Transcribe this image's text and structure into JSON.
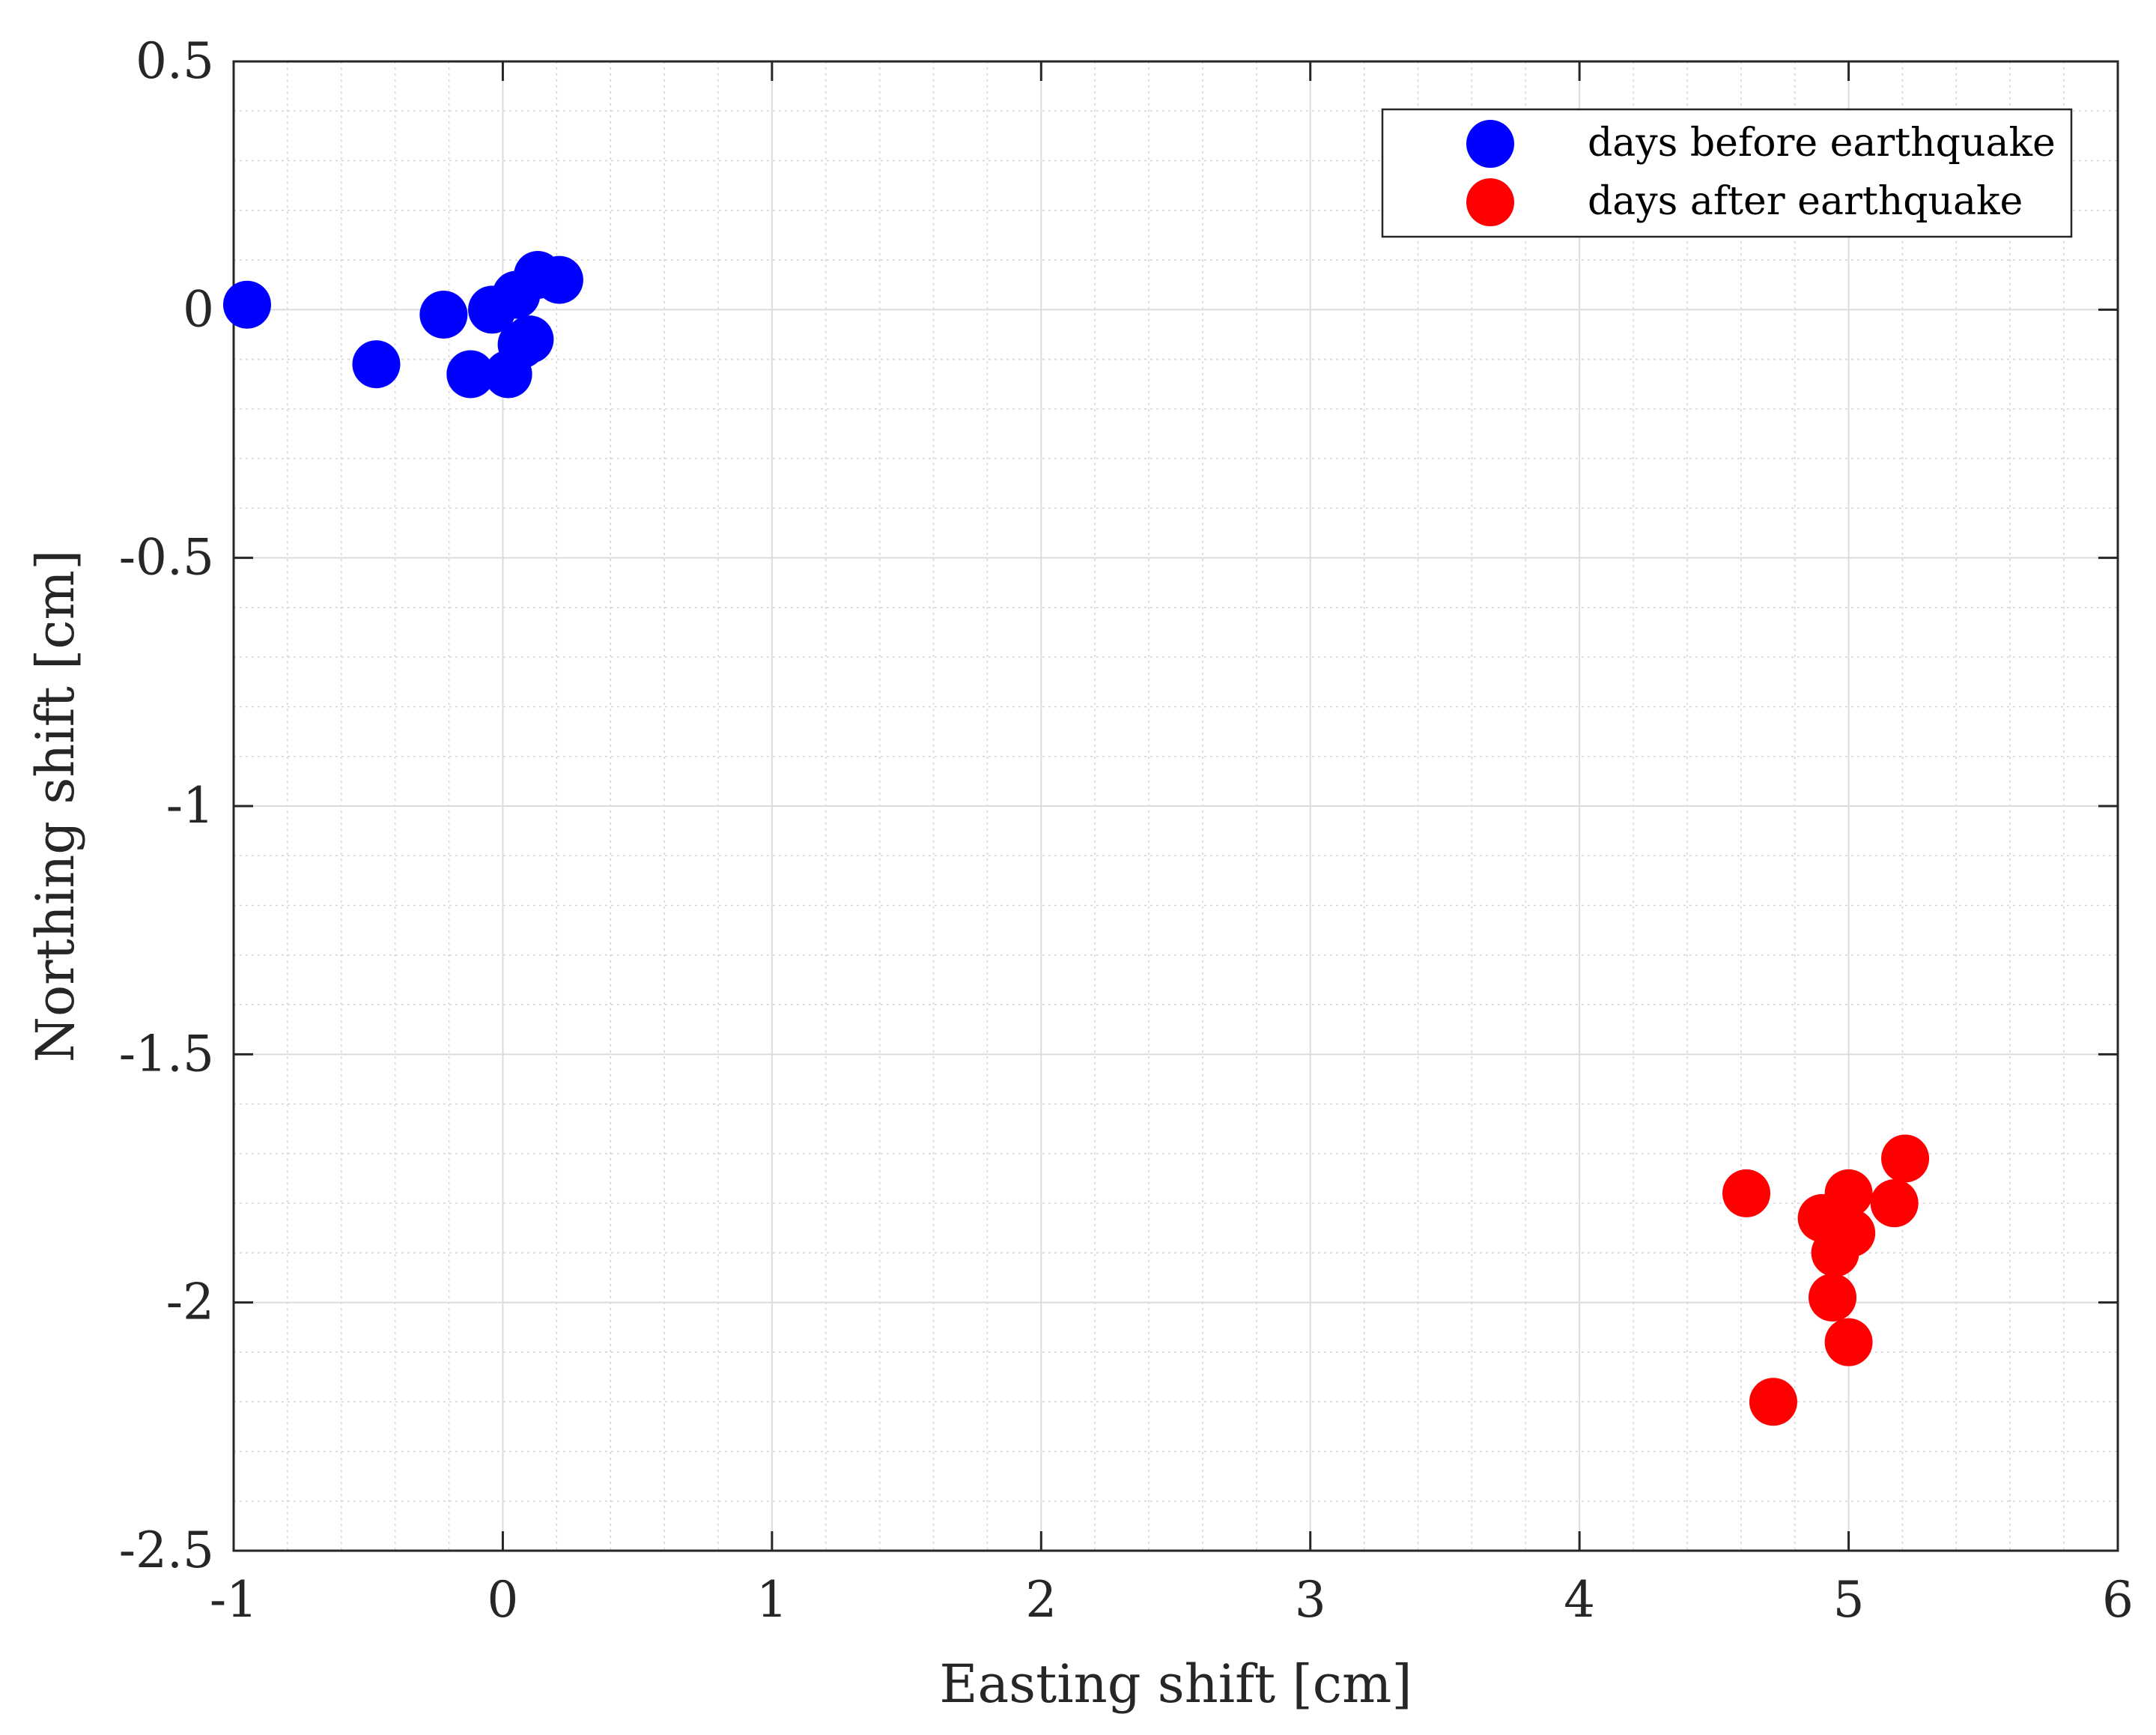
{
  "chart_data": {
    "type": "scatter",
    "title": "",
    "xlabel": "Easting shift [cm]",
    "ylabel": "Northing shift [cm]",
    "xlim": [
      -1,
      6
    ],
    "ylim": [
      -2.5,
      0.5
    ],
    "x_ticks": [
      -1,
      0,
      1,
      2,
      3,
      4,
      5,
      6
    ],
    "x_tick_labels": [
      "-1",
      "0",
      "1",
      "2",
      "3",
      "4",
      "5",
      "6"
    ],
    "y_ticks": [
      0.5,
      0,
      -0.5,
      -1,
      -1.5,
      -2,
      -2.5
    ],
    "y_tick_labels": [
      "0.5",
      "0",
      "-0.5",
      "-1",
      "-1.5",
      "-2",
      "-2.5"
    ],
    "grid": true,
    "minor_grid": true,
    "legend_position": "top-right",
    "series": [
      {
        "name": "days before earthquake",
        "color": "#0000ff",
        "x": [
          -0.95,
          -0.47,
          -0.22,
          -0.12,
          -0.04,
          0.02,
          0.05,
          0.07,
          0.1,
          0.13,
          0.21
        ],
        "y": [
          0.01,
          -0.11,
          -0.01,
          -0.13,
          0.0,
          -0.13,
          0.03,
          -0.07,
          -0.06,
          0.07,
          0.06
        ]
      },
      {
        "name": "days after earthquake",
        "color": "#ff0000",
        "x": [
          4.62,
          4.72,
          4.9,
          4.94,
          4.95,
          4.97,
          5.0,
          5.0,
          5.01,
          5.17,
          5.21
        ],
        "y": [
          -1.78,
          -2.2,
          -1.83,
          -1.99,
          -1.9,
          -1.86,
          -1.78,
          -2.08,
          -1.86,
          -1.8,
          -1.71
        ]
      }
    ]
  }
}
